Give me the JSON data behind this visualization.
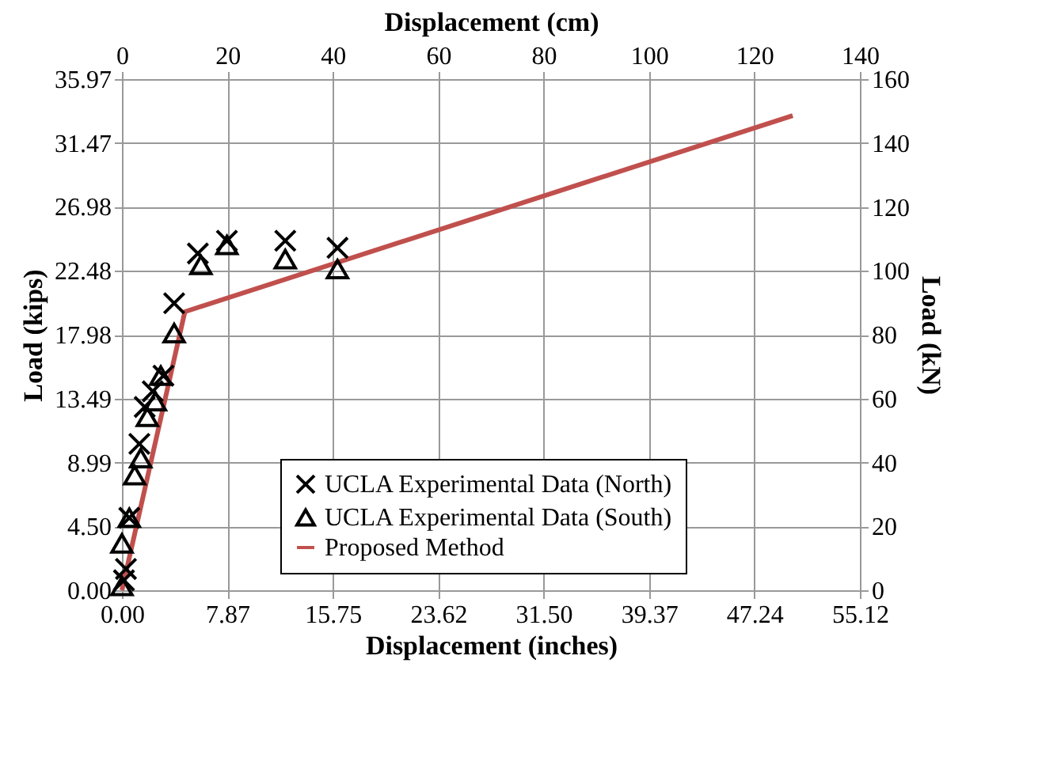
{
  "chart_data": {
    "type": "scatter",
    "xlabel": "Displacement (inches)",
    "ylabel": "Load (kips)",
    "x2label": "Displacement (cm)",
    "y2label": "Load (kN)",
    "series": [
      {
        "name": "UCLA Experimental Data (North)",
        "color": "#000000",
        "marker": "cross",
        "x": [
          0.15,
          0.3,
          0.55,
          1.3,
          1.7,
          2.3,
          3.1,
          3.9,
          5.67,
          7.84,
          12.2,
          16.1
        ],
        "values": [
          0.7,
          1.5,
          5.1,
          10.3,
          12.9,
          14.0,
          15.1,
          20.2,
          23.7,
          24.6,
          24.6,
          24.1
        ]
      },
      {
        "name": "UCLA Experimental Data (South)",
        "color": "#000000",
        "marker": "triangle",
        "x": [
          0.0,
          0.0,
          0.55,
          0.95,
          1.4,
          1.9,
          2.5,
          2.9,
          3.9,
          5.9,
          7.84,
          12.2,
          16.1
        ],
        "values": [
          0.3,
          3.3,
          5.1,
          8.1,
          9.3,
          12.2,
          13.3,
          15.1,
          18.1,
          22.9,
          24.3,
          23.3,
          22.6
        ]
      },
      {
        "name": "Proposed Method",
        "color": "#c0504d",
        "type": "line",
        "marker": "none",
        "x": [
          0.0,
          4.7,
          50.1
        ],
        "values": [
          0.0,
          19.6,
          33.4
        ]
      }
    ],
    "xlim": [
      0,
      55.12
    ],
    "xticks": [
      {
        "value": 0,
        "label": "0.00"
      },
      {
        "value": 7.87,
        "label": "7.87"
      },
      {
        "value": 15.75,
        "label": "15.75"
      },
      {
        "value": 23.62,
        "label": "23.62"
      },
      {
        "value": 31.5,
        "label": "31.50"
      },
      {
        "value": 39.37,
        "label": "39.37"
      },
      {
        "value": 47.24,
        "label": "47.24"
      },
      {
        "value": 55.12,
        "label": "55.12"
      }
    ],
    "ylim": [
      0,
      35.97
    ],
    "yticks": [
      {
        "value": 0,
        "label": "0.00"
      },
      {
        "value": 4.5,
        "label": "4.50"
      },
      {
        "value": 8.99,
        "label": "8.99"
      },
      {
        "value": 13.49,
        "label": "13.49"
      },
      {
        "value": 17.98,
        "label": "17.98"
      },
      {
        "value": 22.48,
        "label": "22.48"
      },
      {
        "value": 26.98,
        "label": "26.98"
      },
      {
        "value": 31.47,
        "label": "31.47"
      },
      {
        "value": 35.97,
        "label": "35.97"
      }
    ],
    "x2lim": [
      0,
      140
    ],
    "x2ticks": [
      0,
      20,
      40,
      60,
      80,
      100,
      120,
      140
    ],
    "y2lim": [
      0,
      160
    ],
    "y2ticks": [
      0,
      20,
      40,
      60,
      80,
      100,
      120,
      140,
      160
    ],
    "grid": true,
    "legend": "bottom"
  }
}
